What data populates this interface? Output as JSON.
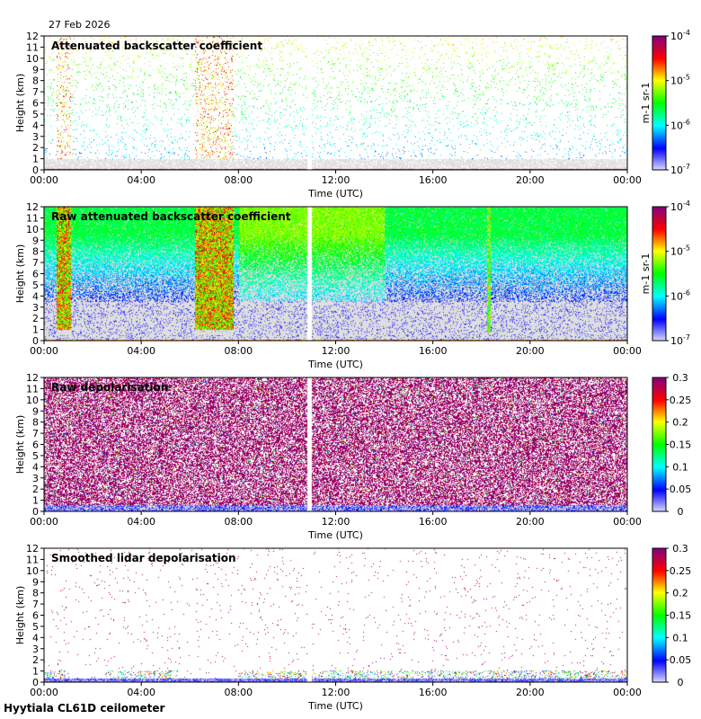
{
  "header": {
    "date": "27 Feb 2026"
  },
  "footer": {
    "site_instrument": "Hyytiala CL61D ceilometer"
  },
  "colors": {
    "missing": "#dedede",
    "colormap": [
      "#d8d8ff",
      "#0000ff",
      "#00ffff",
      "#00ff00",
      "#ffff00",
      "#ff0000",
      "#800080"
    ]
  },
  "chart_data": [
    {
      "type": "heatmap",
      "title": "Attenuated backscatter coefficient",
      "xlabel": "Time (UTC)",
      "ylabel": "Height (km)",
      "x_ticks": [
        "00:00",
        "04:00",
        "08:00",
        "12:00",
        "16:00",
        "20:00",
        "00:00"
      ],
      "y_ticks": [
        "0",
        "1",
        "2",
        "3",
        "4",
        "5",
        "6",
        "7",
        "8",
        "9",
        "10",
        "11",
        "12"
      ],
      "xlim_hours": [
        0,
        24
      ],
      "ylim_km": [
        0,
        12
      ],
      "colorbar": {
        "scale": "log",
        "ticks": [
          "10-7",
          "10-6",
          "10-5",
          "10-4"
        ],
        "unit": "m-1 sr-1"
      }
    },
    {
      "type": "heatmap",
      "title": "Raw attenuated backscatter coefficient",
      "xlabel": "Time (UTC)",
      "ylabel": "Height (km)",
      "x_ticks": [
        "00:00",
        "04:00",
        "08:00",
        "12:00",
        "16:00",
        "20:00",
        "00:00"
      ],
      "y_ticks": [
        "0",
        "1",
        "2",
        "3",
        "4",
        "5",
        "6",
        "7",
        "8",
        "9",
        "10",
        "11",
        "12"
      ],
      "xlim_hours": [
        0,
        24
      ],
      "ylim_km": [
        0,
        12
      ],
      "colorbar": {
        "scale": "log",
        "ticks": [
          "10-7",
          "10-6",
          "10-5",
          "10-4"
        ],
        "unit": "m-1 sr-1"
      }
    },
    {
      "type": "heatmap",
      "title": "Raw depolarisation",
      "xlabel": "Time (UTC)",
      "ylabel": "Height (km)",
      "x_ticks": [
        "00:00",
        "04:00",
        "08:00",
        "12:00",
        "16:00",
        "20:00",
        "00:00"
      ],
      "y_ticks": [
        "0",
        "1",
        "2",
        "3",
        "4",
        "5",
        "6",
        "7",
        "8",
        "9",
        "10",
        "11",
        "12"
      ],
      "xlim_hours": [
        0,
        24
      ],
      "ylim_km": [
        0,
        12
      ],
      "colorbar": {
        "scale": "linear",
        "ticks": [
          "0",
          "0.05",
          "0.1",
          "0.15",
          "0.2",
          "0.25",
          "0.3"
        ],
        "range": [
          0,
          0.3
        ],
        "unit": ""
      }
    },
    {
      "type": "heatmap",
      "title": "Smoothed lidar depolarisation",
      "xlabel": "Time (UTC)",
      "ylabel": "Height (km)",
      "x_ticks": [
        "00:00",
        "04:00",
        "08:00",
        "12:00",
        "16:00",
        "20:00",
        "00:00"
      ],
      "y_ticks": [
        "0",
        "1",
        "2",
        "3",
        "4",
        "5",
        "6",
        "7",
        "8",
        "9",
        "10",
        "11",
        "12"
      ],
      "xlim_hours": [
        0,
        24
      ],
      "ylim_km": [
        0,
        12
      ],
      "colorbar": {
        "scale": "linear",
        "ticks": [
          "0",
          "0.05",
          "0.1",
          "0.15",
          "0.2",
          "0.25",
          "0.3"
        ],
        "range": [
          0,
          0.3
        ],
        "unit": ""
      }
    }
  ]
}
